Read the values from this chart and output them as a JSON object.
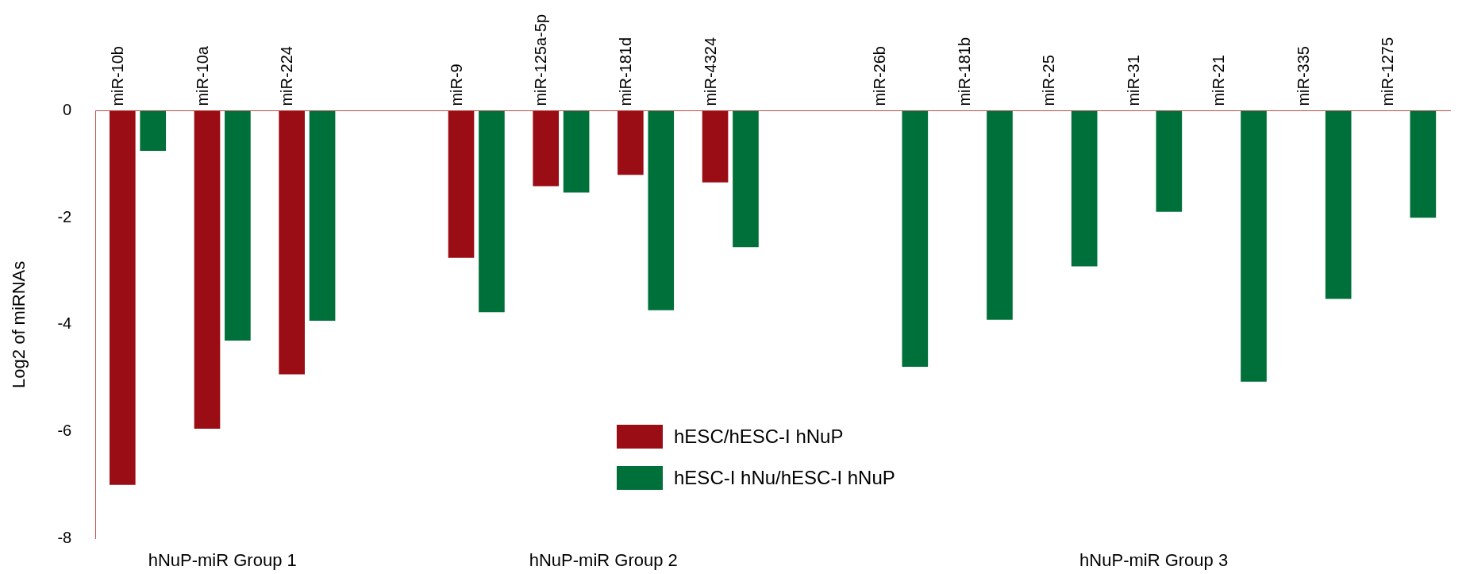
{
  "chart_data": {
    "type": "bar",
    "ylabel": "Log2 of miRNAs",
    "categories": [
      "miR-10b",
      "miR-10a",
      "miR-224",
      null,
      "miR-9",
      "miR-125a-5p",
      "miR-181d",
      "miR-4324",
      null,
      "miR-26b",
      "miR-181b",
      "miR-25",
      "miR-31",
      "miR-21",
      "miR-335",
      "miR-1275"
    ],
    "series": [
      {
        "name": "hESC/hESC-I hNuP",
        "color": "#9b0d14",
        "values": [
          -7.0,
          -5.95,
          -4.93,
          null,
          -2.75,
          -1.41,
          -1.2,
          -1.34,
          null,
          null,
          null,
          null,
          null,
          null,
          null,
          null
        ]
      },
      {
        "name": "hESC-I hNu/hESC-I hNuP",
        "color": "#00703a",
        "values": [
          -0.75,
          -4.3,
          -3.93,
          null,
          -3.77,
          -1.53,
          -3.73,
          -2.55,
          null,
          -4.79,
          -3.91,
          -2.91,
          -1.89,
          -5.07,
          -3.52,
          -2.0
        ]
      }
    ],
    "ylim": [
      -8,
      0
    ],
    "yticks": [
      -8,
      -6,
      -4,
      -2,
      0
    ],
    "grid": false,
    "legend": "bottom",
    "annotations": [
      "hNuP-miR Group 1",
      "hNuP-miR Group 2",
      "hNuP-miR Group 3"
    ]
  }
}
